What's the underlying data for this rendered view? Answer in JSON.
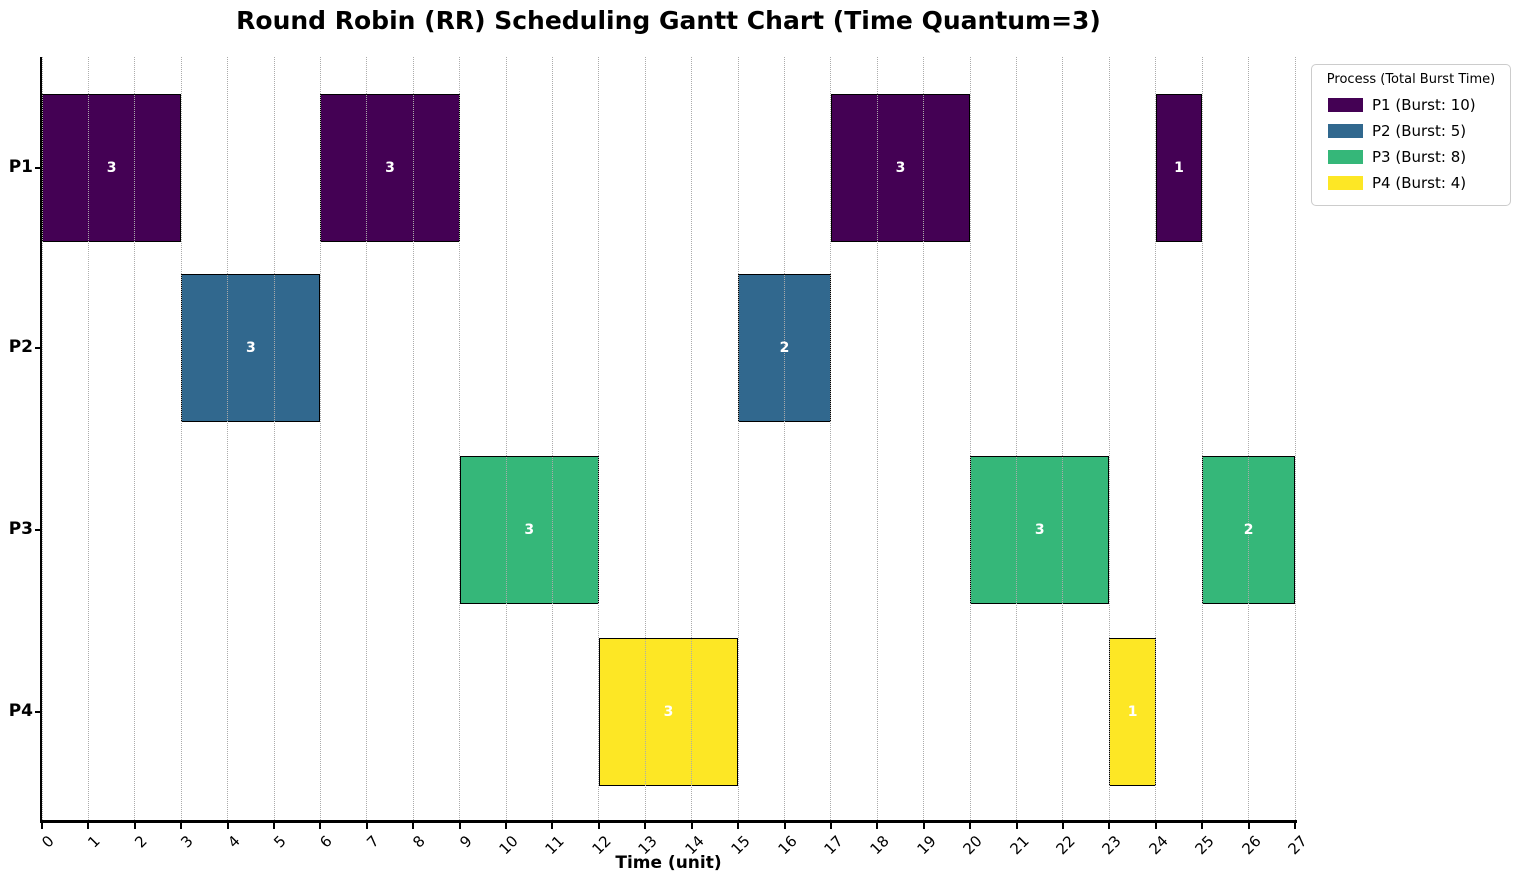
{
  "title": "Round Robin (RR) Scheduling Gantt Chart (Time Quantum=3)",
  "axes": {
    "xlabel": "Time (unit)",
    "x_ticks": [
      "0",
      "1",
      "2",
      "3",
      "4",
      "5",
      "6",
      "7",
      "8",
      "9",
      "10",
      "11",
      "12",
      "13",
      "14",
      "15",
      "16",
      "17",
      "18",
      "19",
      "20",
      "21",
      "22",
      "23",
      "24",
      "25",
      "26",
      "27"
    ],
    "y_labels": [
      "P1",
      "P2",
      "P3",
      "P4"
    ]
  },
  "legend": {
    "title": "Process (Total Burst Time)",
    "items": [
      {
        "label": "P1 (Burst: 10)",
        "color": "#440154"
      },
      {
        "label": "P2 (Burst: 5)",
        "color": "#31688e"
      },
      {
        "label": "P3 (Burst: 8)",
        "color": "#35b779"
      },
      {
        "label": "P4 (Burst: 4)",
        "color": "#fde725"
      }
    ]
  },
  "chart_data": {
    "type": "bar",
    "subtype": "gantt-horizontal",
    "title": "Round Robin (RR) Scheduling Gantt Chart (Time Quantum=3)",
    "xlabel": "Time (unit)",
    "ylabel": "",
    "xlim": [
      0,
      27
    ],
    "time_quantum": 3,
    "grid": "vertical-dotted",
    "legend_position": "outside-upper-right",
    "rows": [
      {
        "process": "P1",
        "total_burst": 10,
        "color": "#440154",
        "segments": [
          {
            "start": 0,
            "end": 3,
            "duration": 3,
            "label": "3"
          },
          {
            "start": 6,
            "end": 9,
            "duration": 3,
            "label": "3"
          },
          {
            "start": 17,
            "end": 20,
            "duration": 3,
            "label": "3"
          },
          {
            "start": 24,
            "end": 25,
            "duration": 1,
            "label": "1"
          }
        ]
      },
      {
        "process": "P2",
        "total_burst": 5,
        "color": "#31688e",
        "segments": [
          {
            "start": 3,
            "end": 6,
            "duration": 3,
            "label": "3"
          },
          {
            "start": 15,
            "end": 17,
            "duration": 2,
            "label": "2"
          }
        ]
      },
      {
        "process": "P3",
        "total_burst": 8,
        "color": "#35b779",
        "segments": [
          {
            "start": 9,
            "end": 12,
            "duration": 3,
            "label": "3"
          },
          {
            "start": 20,
            "end": 23,
            "duration": 3,
            "label": "3"
          },
          {
            "start": 25,
            "end": 27,
            "duration": 2,
            "label": "2"
          }
        ]
      },
      {
        "process": "P4",
        "total_burst": 4,
        "color": "#fde725",
        "segments": [
          {
            "start": 12,
            "end": 15,
            "duration": 3,
            "label": "3"
          },
          {
            "start": 23,
            "end": 24,
            "duration": 1,
            "label": "1"
          }
        ]
      }
    ]
  }
}
